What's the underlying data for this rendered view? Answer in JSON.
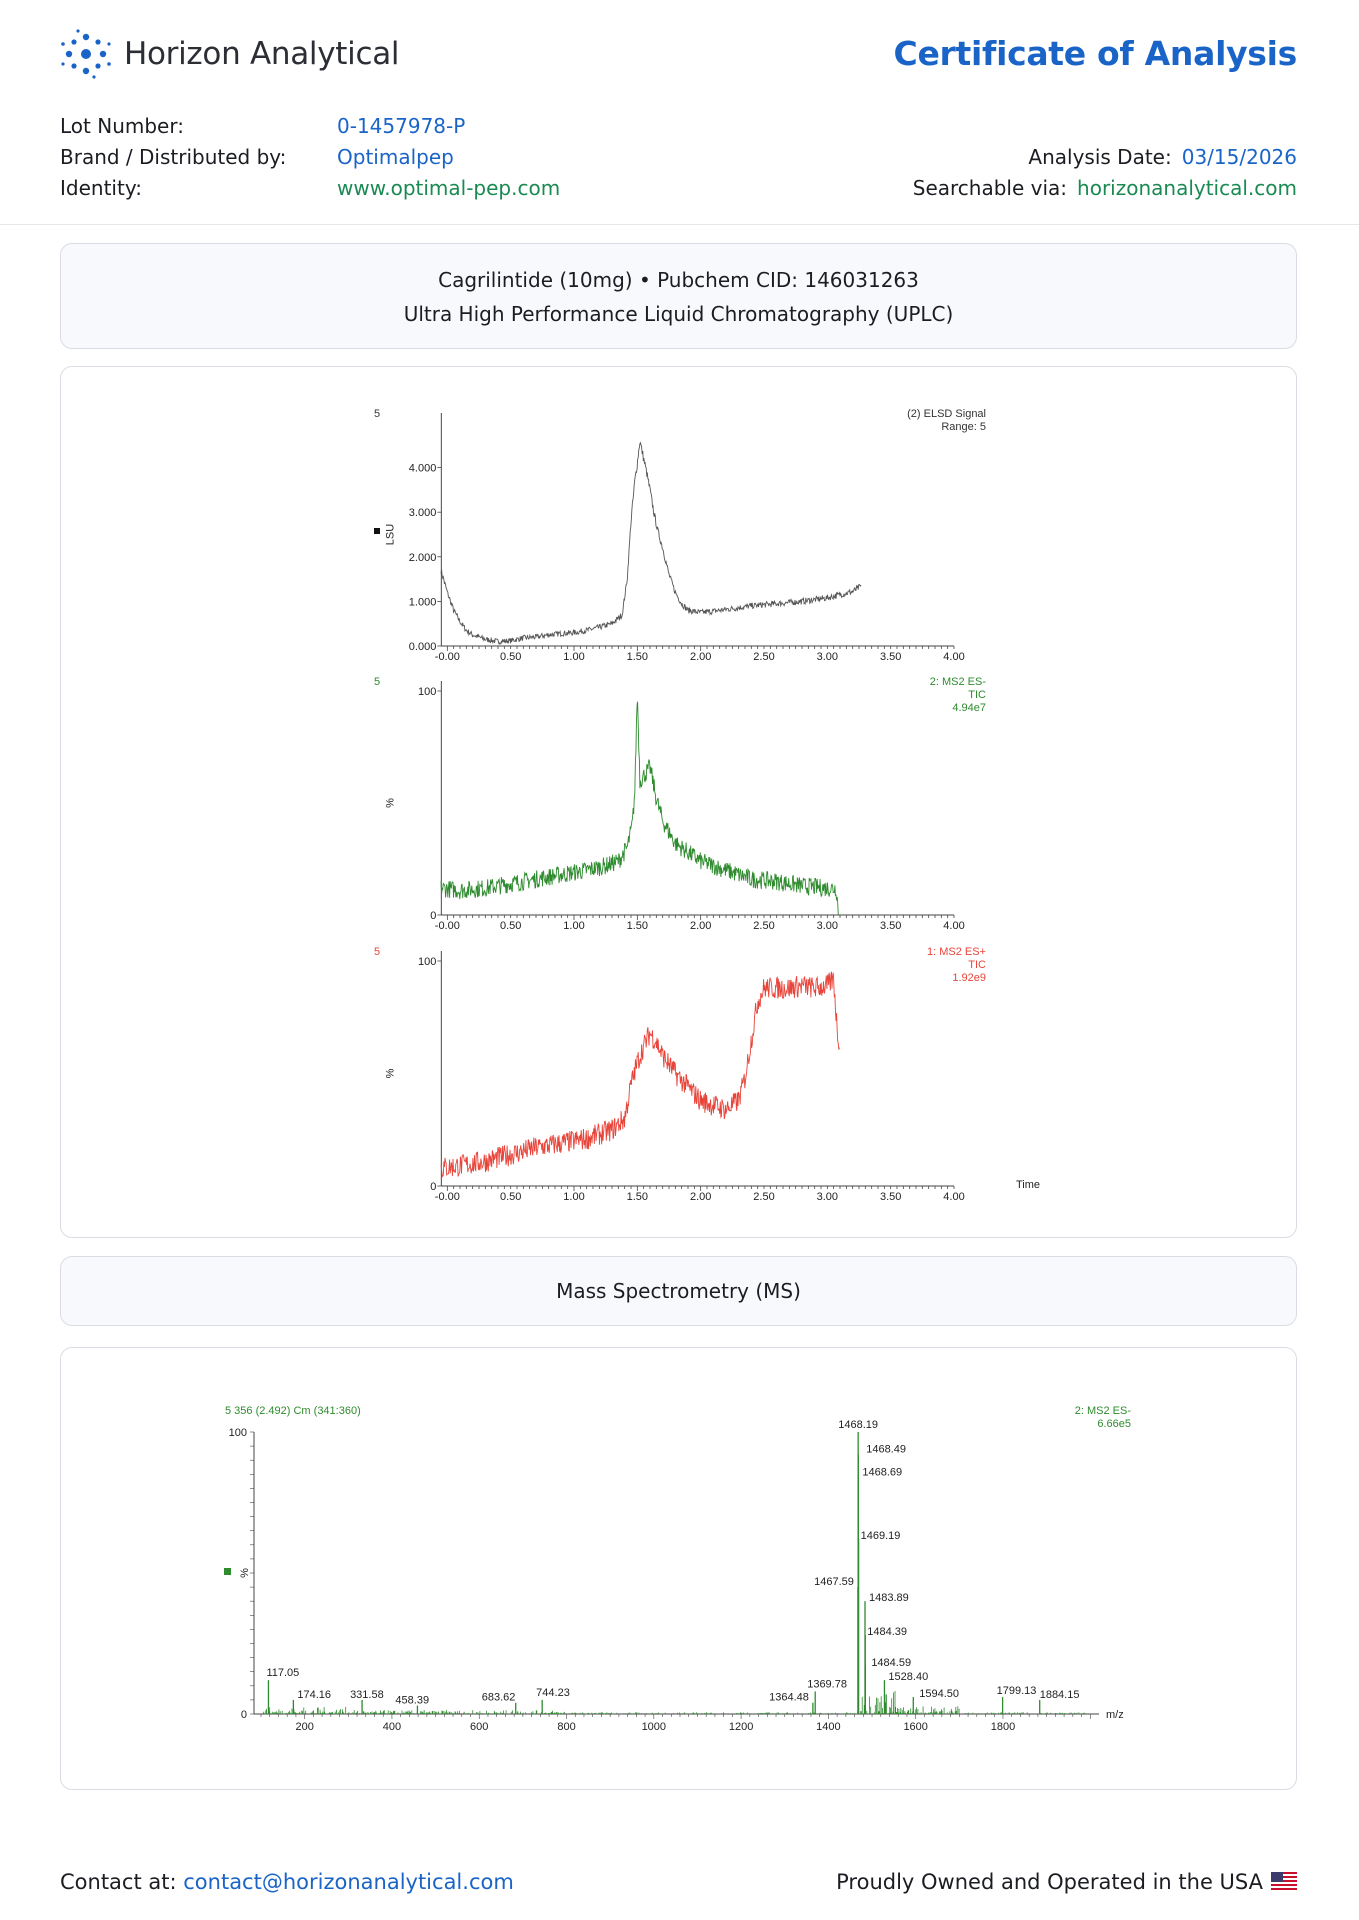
{
  "header": {
    "brand": "Horizon Analytical",
    "title": "Certificate of Analysis",
    "lot_label": "Lot Number:",
    "lot_value": "0-1457978-P",
    "brand_label": "Brand / Distributed by:",
    "brand_value": "Optimalpep",
    "identity_label": "Identity:",
    "identity_value": "www.optimal-pep.com",
    "date_label": "Analysis Date:",
    "date_value": "03/15/2026",
    "search_label": "Searchable via:",
    "search_value": "horizonanalytical.com"
  },
  "uplc": {
    "line1": "Cagrilintide (10mg) • Pubchem CID: 146031263",
    "line2": "Ultra High Performance Liquid Chromatography (UPLC)"
  },
  "ms_section": {
    "title": "Mass Spectrometry (MS)"
  },
  "footer": {
    "contact_label": "Contact at:",
    "contact_email": "contact@horizonanalytical.com",
    "usa_text": "Proudly Owned and Operated in the USA"
  },
  "colors": {
    "accent": "#1a64c8",
    "green": "#1a8a52",
    "trace_elsd": "#555555",
    "trace_es_minus": "#2e8b2e",
    "trace_es_plus": "#e8443a"
  },
  "chart_data": [
    {
      "type": "line",
      "id": "elsd",
      "corner_label": "5",
      "info": [
        "(2) ELSD Signal",
        "Range: 5"
      ],
      "ylabel": "LSU",
      "xlim": [
        -0.05,
        4.0
      ],
      "ylim": [
        0,
        5
      ],
      "yticks": [
        "0.000",
        "1.000",
        "2.000",
        "3.000",
        "4.000"
      ],
      "xticks": [
        "-0.00",
        "0.50",
        "1.00",
        "1.50",
        "2.00",
        "2.50",
        "3.00",
        "3.50",
        "4.00"
      ],
      "x": [
        -0.05,
        0.0,
        0.05,
        0.1,
        0.15,
        0.2,
        0.3,
        0.4,
        0.5,
        0.6,
        0.7,
        0.8,
        0.9,
        1.0,
        1.1,
        1.2,
        1.3,
        1.38,
        1.42,
        1.45,
        1.48,
        1.5,
        1.52,
        1.55,
        1.58,
        1.6,
        1.63,
        1.66,
        1.7,
        1.75,
        1.8,
        1.85,
        1.9,
        2.0,
        2.1,
        2.2,
        2.4,
        2.6,
        2.8,
        3.0,
        3.1,
        3.2,
        3.27
      ],
      "y": [
        1.7,
        1.2,
        0.8,
        0.55,
        0.35,
        0.25,
        0.15,
        0.1,
        0.12,
        0.18,
        0.2,
        0.25,
        0.28,
        0.3,
        0.35,
        0.42,
        0.5,
        0.7,
        1.5,
        2.8,
        3.7,
        4.1,
        4.6,
        4.2,
        3.8,
        3.5,
        3.0,
        2.6,
        2.2,
        1.6,
        1.2,
        0.95,
        0.8,
        0.75,
        0.78,
        0.82,
        0.9,
        0.95,
        1.0,
        1.08,
        1.15,
        1.22,
        1.35
      ]
    },
    {
      "type": "line",
      "id": "ms2_es_minus",
      "corner_label": "5",
      "info": [
        "2: MS2 ES-",
        "TIC",
        "4.94e7"
      ],
      "ylabel": "%",
      "xlim": [
        -0.05,
        4.0
      ],
      "ylim": [
        0,
        100
      ],
      "yticks": [
        "0",
        "100"
      ],
      "xticks": [
        "-0.00",
        "0.50",
        "1.00",
        "1.50",
        "2.00",
        "2.50",
        "3.00",
        "3.50",
        "4.00"
      ],
      "x": [
        -0.05,
        0.1,
        0.3,
        0.5,
        0.7,
        0.9,
        1.1,
        1.25,
        1.35,
        1.42,
        1.46,
        1.48,
        1.5,
        1.52,
        1.55,
        1.6,
        1.65,
        1.7,
        1.8,
        1.9,
        2.0,
        2.2,
        2.4,
        2.6,
        2.8,
        3.0,
        3.07,
        3.09
      ],
      "y": [
        12,
        11,
        12,
        14,
        16,
        18,
        20,
        22,
        24,
        30,
        40,
        55,
        100,
        60,
        62,
        66,
        52,
        42,
        32,
        28,
        24,
        20,
        16,
        15,
        13,
        12,
        12,
        0
      ]
    },
    {
      "type": "line",
      "id": "ms2_es_plus",
      "corner_label": "5",
      "info": [
        "1: MS2 ES+",
        "TIC",
        "1.92e9"
      ],
      "ylabel": "%",
      "xlabel": "Time",
      "xlim": [
        -0.05,
        4.0
      ],
      "ylim": [
        0,
        100
      ],
      "yticks": [
        "0",
        "100"
      ],
      "xticks": [
        "-0.00",
        "0.50",
        "1.00",
        "1.50",
        "2.00",
        "2.50",
        "3.00",
        "3.50",
        "4.00"
      ],
      "x": [
        -0.05,
        0.1,
        0.3,
        0.5,
        0.7,
        0.9,
        1.1,
        1.3,
        1.4,
        1.45,
        1.5,
        1.55,
        1.6,
        1.65,
        1.7,
        1.8,
        1.9,
        2.0,
        2.1,
        2.2,
        2.3,
        2.35,
        2.4,
        2.45,
        2.5,
        2.6,
        2.7,
        2.8,
        2.9,
        3.0,
        3.05,
        3.08,
        3.1
      ],
      "y": [
        8,
        9,
        11,
        14,
        17,
        19,
        21,
        25,
        30,
        45,
        55,
        62,
        68,
        64,
        58,
        50,
        44,
        38,
        36,
        34,
        38,
        48,
        65,
        82,
        88,
        88,
        88,
        89,
        88,
        89,
        92,
        68,
        63
      ]
    },
    {
      "type": "bar",
      "id": "ms_spectrum",
      "header": "5 356 (2.492) Cm (341:360)",
      "info": [
        "2: MS2 ES-",
        "6.66e5"
      ],
      "ylabel": "%",
      "xlabel": "m/z",
      "xlim": [
        100,
        2020
      ],
      "ylim": [
        0,
        100
      ],
      "yticks": [
        "0",
        "100"
      ],
      "xticks": [
        "200",
        "400",
        "600",
        "800",
        "1000",
        "1200",
        "1400",
        "1600",
        "1800"
      ],
      "peaks": [
        {
          "mz": 117.05,
          "intensity": 12,
          "label": "117.05"
        },
        {
          "mz": 174.16,
          "intensity": 5,
          "label": "174.16"
        },
        {
          "mz": 331.58,
          "intensity": 5,
          "label": "331.58"
        },
        {
          "mz": 458.39,
          "intensity": 3,
          "label": "458.39"
        },
        {
          "mz": 683.62,
          "intensity": 4,
          "label": "683.62"
        },
        {
          "mz": 744.23,
          "intensity": 5,
          "label": "744.23"
        },
        {
          "mz": 1364.48,
          "intensity": 4,
          "label": "1364.48"
        },
        {
          "mz": 1369.78,
          "intensity": 8,
          "label": "1369.78"
        },
        {
          "mz": 1467.59,
          "intensity": 45,
          "label": "1467.59"
        },
        {
          "mz": 1468.19,
          "intensity": 100,
          "label": "1468.19"
        },
        {
          "mz": 1468.49,
          "intensity": 92,
          "label": "1468.49"
        },
        {
          "mz": 1468.69,
          "intensity": 86,
          "label": "1468.69"
        },
        {
          "mz": 1469.19,
          "intensity": 62,
          "label": "1469.19"
        },
        {
          "mz": 1483.89,
          "intensity": 40,
          "label": "1483.89"
        },
        {
          "mz": 1484.39,
          "intensity": 28,
          "label": "1484.39"
        },
        {
          "mz": 1484.59,
          "intensity": 17,
          "label": "1484.59"
        },
        {
          "mz": 1528.4,
          "intensity": 12,
          "label": "1528.40"
        },
        {
          "mz": 1594.5,
          "intensity": 6,
          "label": "1594.50"
        },
        {
          "mz": 1799.13,
          "intensity": 6,
          "label": "1799.13"
        },
        {
          "mz": 1884.15,
          "intensity": 5,
          "label": "1884.15"
        }
      ]
    }
  ]
}
